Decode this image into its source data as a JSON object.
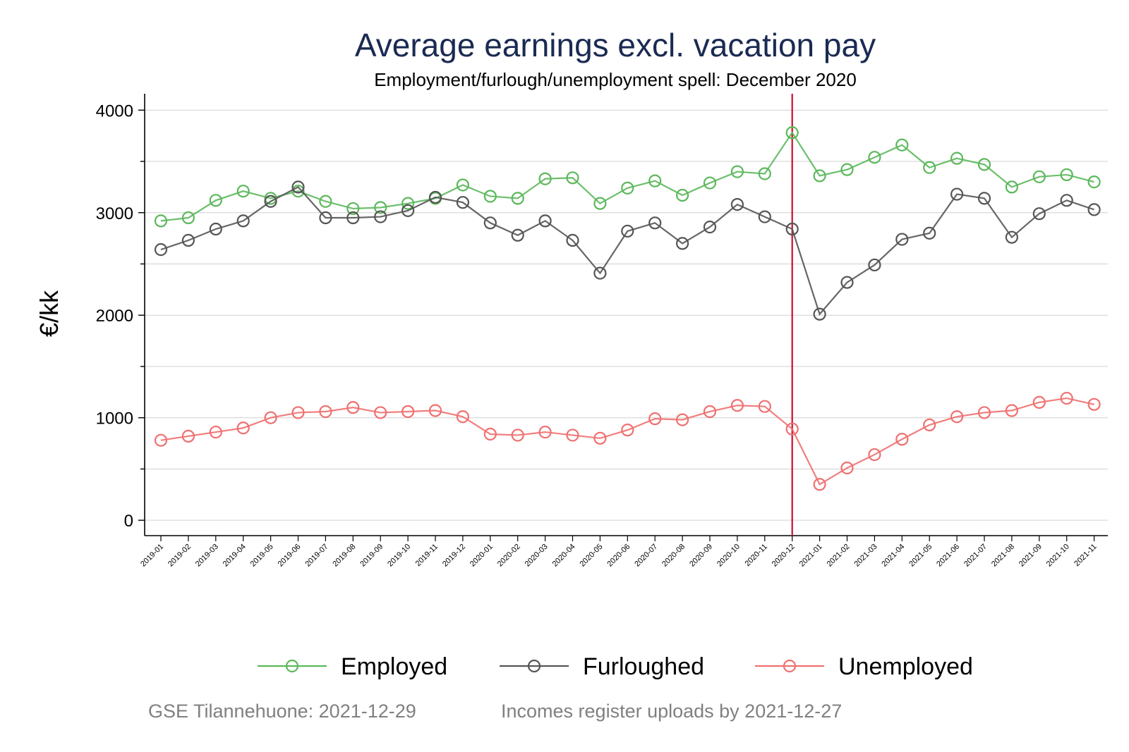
{
  "chart_data": {
    "type": "line",
    "title": "Average earnings excl. vacation pay",
    "subtitle": "Employment/furlough/unemployment spell: December 2020",
    "ylabel": "€/kk",
    "xlabel": "",
    "ylim": [
      -150,
      4160
    ],
    "yticks": [
      0,
      1000,
      2000,
      3000,
      4000
    ],
    "grid": true,
    "legend_position": "bottom",
    "reference_line": {
      "x": "2020-12",
      "color": "#c8102e"
    },
    "categories": [
      "2019-01",
      "2019-02",
      "2019-03",
      "2019-04",
      "2019-05",
      "2019-06",
      "2019-07",
      "2019-08",
      "2019-09",
      "2019-10",
      "2019-11",
      "2019-12",
      "2020-01",
      "2020-02",
      "2020-03",
      "2020-04",
      "2020-05",
      "2020-06",
      "2020-07",
      "2020-08",
      "2020-09",
      "2020-10",
      "2020-11",
      "2020-12",
      "2021-01",
      "2021-02",
      "2021-03",
      "2021-04",
      "2021-05",
      "2021-06",
      "2021-07",
      "2021-08",
      "2021-09",
      "2021-10",
      "2021-11"
    ],
    "series": [
      {
        "name": "Employed",
        "color": "#5cb85c",
        "values": [
          2920,
          2950,
          3120,
          3210,
          3140,
          3210,
          3110,
          3040,
          3050,
          3090,
          3140,
          3270,
          3160,
          3140,
          3330,
          3340,
          3090,
          3240,
          3310,
          3170,
          3290,
          3400,
          3380,
          3780,
          3360,
          3420,
          3540,
          3660,
          3440,
          3530,
          3470,
          3250,
          3350,
          3370,
          3300
        ]
      },
      {
        "name": "Furloughed",
        "color": "#555555",
        "values": [
          2640,
          2730,
          2840,
          2920,
          3110,
          3250,
          2950,
          2950,
          2960,
          3020,
          3150,
          3100,
          2900,
          2780,
          2920,
          2730,
          2410,
          2820,
          2900,
          2700,
          2860,
          3080,
          2960,
          2840,
          2010,
          2320,
          2490,
          2740,
          2800,
          3180,
          3140,
          2760,
          2990,
          3120,
          3030
        ]
      },
      {
        "name": "Unemployed",
        "color": "#f07070",
        "values": [
          780,
          820,
          860,
          900,
          1000,
          1050,
          1060,
          1100,
          1050,
          1060,
          1070,
          1010,
          840,
          830,
          860,
          830,
          800,
          880,
          990,
          980,
          1060,
          1120,
          1110,
          890,
          350,
          510,
          640,
          790,
          930,
          1010,
          1050,
          1070,
          1150,
          1190,
          1130
        ]
      }
    ]
  },
  "footer": {
    "left": "GSE Tilannehuone: 2021-12-29",
    "right": "Incomes register uploads by 2021-12-27"
  }
}
